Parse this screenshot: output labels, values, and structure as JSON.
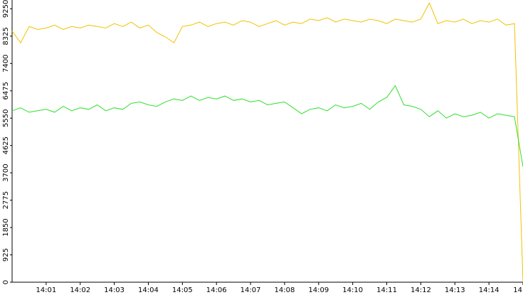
{
  "chart_data": {
    "type": "line",
    "x": [
      0,
      0.25,
      0.5,
      0.75,
      1,
      1.25,
      1.5,
      1.75,
      2,
      2.25,
      2.5,
      2.75,
      3,
      3.25,
      3.5,
      3.75,
      4,
      4.25,
      4.5,
      4.75,
      5,
      5.25,
      5.5,
      5.75,
      6,
      6.25,
      6.5,
      6.75,
      7,
      7.25,
      7.5,
      7.75,
      8,
      8.25,
      8.5,
      8.75,
      9,
      9.25,
      9.5,
      9.75,
      10,
      10.25,
      10.5,
      10.75,
      11,
      11.25,
      11.5,
      11.75,
      12,
      12.25,
      12.5,
      12.75,
      13,
      13.25,
      13.5,
      13.75,
      14,
      14.25,
      14.5,
      14.75,
      15
    ],
    "series": [
      {
        "color": "#f2c200",
        "values": [
          8500,
          8100,
          8650,
          8550,
          8600,
          8700,
          8550,
          8650,
          8600,
          8700,
          8650,
          8600,
          8750,
          8650,
          8800,
          8600,
          8700,
          8450,
          8300,
          8100,
          8650,
          8700,
          8800,
          8650,
          8750,
          8800,
          8700,
          8850,
          8800,
          8650,
          8750,
          8850,
          8700,
          8800,
          8750,
          8900,
          8850,
          8950,
          8800,
          8900,
          8850,
          8800,
          8900,
          8850,
          8750,
          8900,
          8850,
          8800,
          8900,
          9450,
          8750,
          8850,
          8800,
          8900,
          8750,
          8850,
          8800,
          8900,
          8700,
          8750,
          0
        ]
      },
      {
        "color": "#2ee02e",
        "values": [
          5800,
          5900,
          5750,
          5800,
          5850,
          5750,
          5950,
          5800,
          5900,
          5850,
          6000,
          5800,
          5900,
          5850,
          6050,
          6100,
          6000,
          5950,
          6100,
          6200,
          6150,
          6300,
          6150,
          6250,
          6200,
          6300,
          6150,
          6200,
          6100,
          6150,
          6000,
          6050,
          6100,
          5900,
          5700,
          5850,
          5900,
          5800,
          6000,
          5900,
          5950,
          6050,
          5850,
          6100,
          6250,
          6650,
          6000,
          5950,
          5850,
          5600,
          5800,
          5550,
          5700,
          5600,
          5650,
          5750,
          5550,
          5700,
          5650,
          5600,
          3900
        ]
      }
    ],
    "xlim": [
      0,
      15
    ],
    "xticks": [
      {
        "value": 1,
        "label": "14:01"
      },
      {
        "value": 2,
        "label": "14:02"
      },
      {
        "value": 3,
        "label": "14:03"
      },
      {
        "value": 4,
        "label": "14:04"
      },
      {
        "value": 5,
        "label": "14:05"
      },
      {
        "value": 6,
        "label": "14:06"
      },
      {
        "value": 7,
        "label": "14:07"
      },
      {
        "value": 8,
        "label": "14:08"
      },
      {
        "value": 9,
        "label": "14:09"
      },
      {
        "value": 10,
        "label": "14:10"
      },
      {
        "value": 11,
        "label": "14:11"
      },
      {
        "value": 12,
        "label": "14:12"
      },
      {
        "value": 13,
        "label": "14:13"
      },
      {
        "value": 14,
        "label": "14:14"
      },
      {
        "value": 15,
        "label": "14"
      }
    ],
    "ylim": [
      0,
      9500
    ],
    "yticks": [
      0,
      925,
      1850,
      2775,
      3700,
      4625,
      5550,
      6475,
      7400,
      8325,
      9250
    ]
  }
}
